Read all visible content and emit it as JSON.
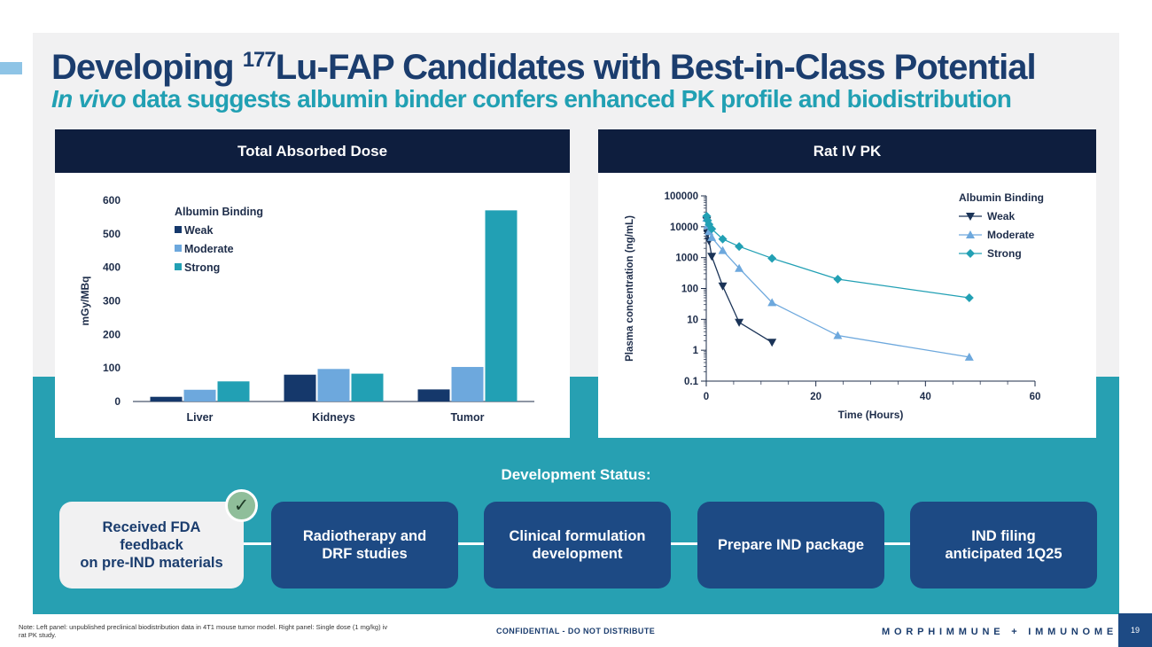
{
  "header": {
    "title_main": "Developing ",
    "title_sup": "177",
    "title_rest": "Lu-FAP Candidates with Best-in-Class Potential",
    "subtitle_italic": "In vivo",
    "subtitle_rest": " data suggests albumin binder confers enhanced PK profile and biodistribution"
  },
  "left_panel": {
    "heading": "Total Absorbed Dose"
  },
  "right_panel": {
    "heading": "Rat IV PK"
  },
  "chart_data": [
    {
      "type": "bar",
      "categories": [
        "Liver",
        "Kidneys",
        "Tumor"
      ],
      "series": [
        {
          "name": "Weak",
          "color": "#15386b",
          "values": [
            14,
            80,
            36
          ]
        },
        {
          "name": "Moderate",
          "color": "#6da8dd",
          "values": [
            35,
            97,
            103
          ]
        },
        {
          "name": "Strong",
          "color": "#22a0b4",
          "values": [
            60,
            83,
            570
          ]
        }
      ],
      "title": "Total Absorbed Dose",
      "xlabel": "",
      "ylabel": "mGy/MBq",
      "ylim": [
        0,
        600
      ],
      "yticks": [
        0,
        100,
        200,
        300,
        400,
        500,
        600
      ],
      "legend_title": "Albumin Binding",
      "legend_position": "top-left",
      "grid": false
    },
    {
      "type": "line",
      "scale": "log",
      "title": "Rat IV PK",
      "xlabel": "Time (Hours)",
      "ylabel": "Plasma concentration (ng/mL)",
      "xlim": [
        0,
        60
      ],
      "xticks": [
        0,
        20,
        40,
        60
      ],
      "ylim": [
        0.1,
        100000
      ],
      "ytick_labels": [
        "0.1",
        "1",
        "10",
        "100",
        "1000",
        "10000",
        "100000"
      ],
      "legend_title": "Albumin Binding",
      "legend_position": "top-right",
      "grid": false,
      "series": [
        {
          "name": "Weak",
          "marker": "triangle-down",
          "color": "#1a3357",
          "x": [
            0.08,
            0.25,
            0.5,
            1,
            3,
            6,
            12
          ],
          "y": [
            16000,
            6000,
            3500,
            1100,
            120,
            8,
            1.8
          ]
        },
        {
          "name": "Moderate",
          "marker": "triangle-up",
          "color": "#6da8dd",
          "x": [
            0.08,
            0.25,
            0.5,
            1,
            3,
            6,
            12,
            24,
            48
          ],
          "y": [
            19000,
            11000,
            7000,
            4500,
            1700,
            450,
            35,
            3,
            0.6
          ]
        },
        {
          "name": "Strong",
          "marker": "diamond",
          "color": "#22a0b4",
          "x": [
            0.08,
            0.25,
            0.5,
            1,
            3,
            6,
            12,
            24,
            48
          ],
          "y": [
            22000,
            16000,
            12000,
            8500,
            4000,
            2300,
            950,
            200,
            50
          ]
        }
      ]
    }
  ],
  "status": {
    "title": "Development Status:",
    "steps": [
      {
        "label": "Received FDA feedback\non pre-IND materials",
        "state": "done"
      },
      {
        "label": "Radiotherapy and\nDRF studies",
        "state": "pending"
      },
      {
        "label": "Clinical formulation\ndevelopment",
        "state": "pending"
      },
      {
        "label": "Prepare IND package",
        "state": "pending"
      },
      {
        "label": "IND filing\nanticipated 1Q25",
        "state": "pending"
      }
    ],
    "check_glyph": "✓"
  },
  "footer": {
    "note": "Note: Left panel: unpublished preclinical biodistribution data in 4T1 mouse tumor model. Right panel: Single dose (1 mg/kg) iv rat PK study.",
    "confidential": "CONFIDENTIAL - DO NOT DISTRIBUTE",
    "brand": "MORPHIMMUNE + IMMUNOME",
    "page": "19"
  }
}
